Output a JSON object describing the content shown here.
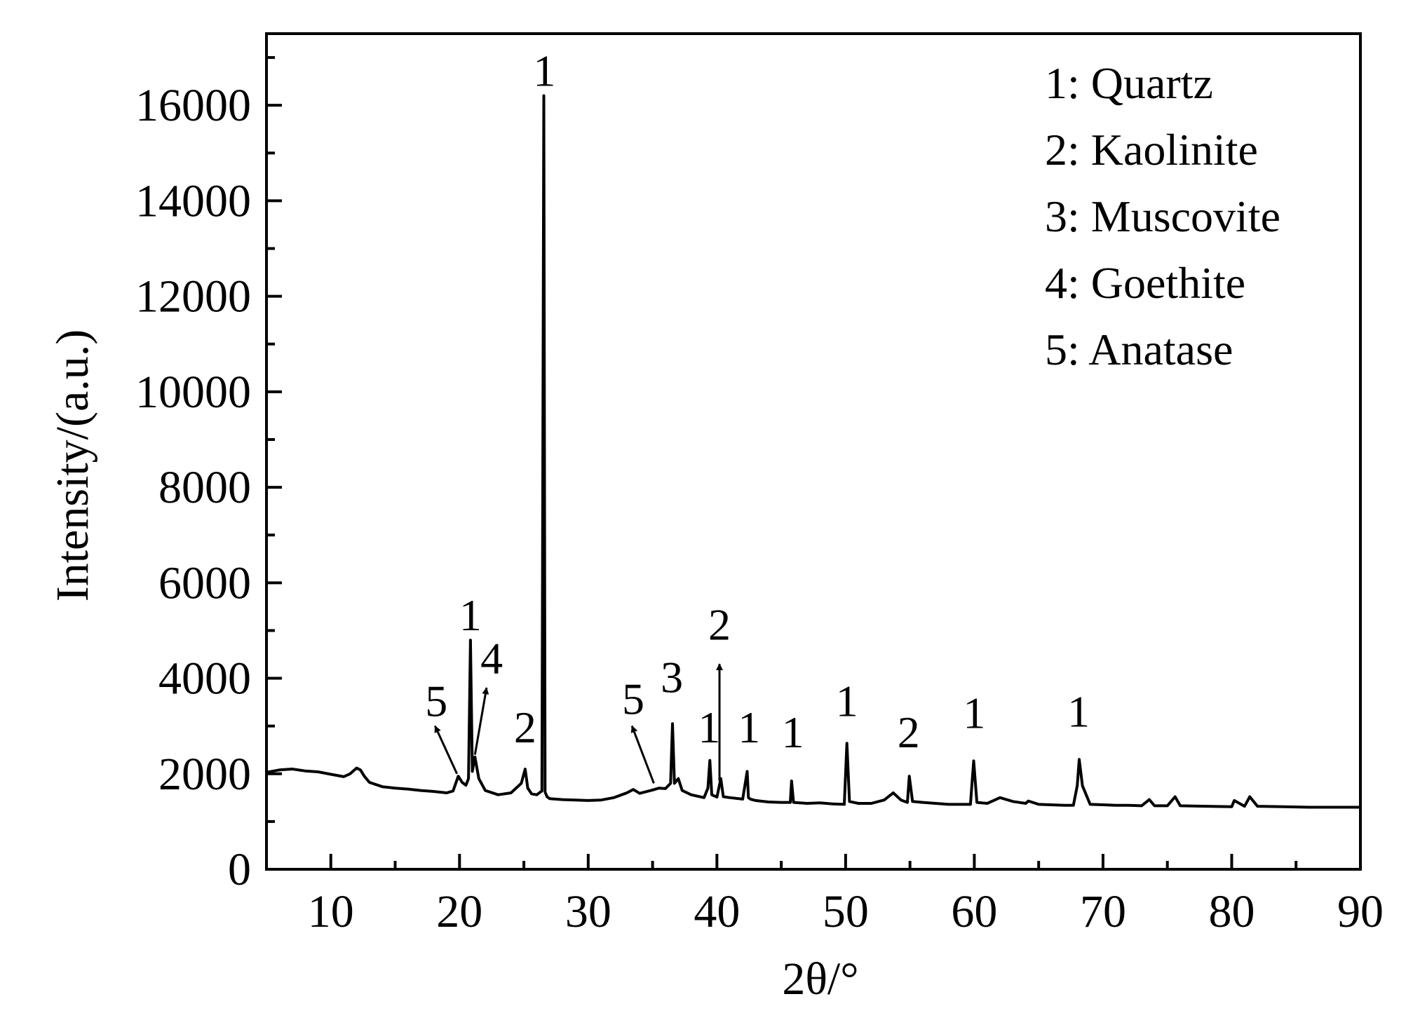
{
  "chart_data": {
    "type": "line",
    "title": "",
    "xlabel": "2θ/°",
    "ylabel": "Intensity/(a.u.)",
    "xlim": [
      5,
      90
    ],
    "ylim": [
      0,
      17500
    ],
    "x_ticks": [
      10,
      20,
      30,
      40,
      50,
      60,
      70,
      80,
      90
    ],
    "x_tick_labels": [
      "10",
      "20",
      "30",
      "40",
      "50",
      "60",
      "70",
      "80",
      "90"
    ],
    "y_ticks": [
      0,
      2000,
      4000,
      6000,
      8000,
      10000,
      12000,
      14000,
      16000
    ],
    "y_tick_labels": [
      "0",
      "2000",
      "4000",
      "6000",
      "8000",
      "10000",
      "12000",
      "14000",
      "16000"
    ],
    "grid": false,
    "legend_position": "top-right",
    "legend": [
      "1: Quartz",
      "2: Kaolinite",
      "3: Muscovite",
      "4: Goethite",
      "5: Anatase"
    ],
    "series": [
      {
        "x": [
          5,
          6,
          7,
          8,
          9,
          10,
          11,
          11.5,
          12,
          12.3,
          12.6,
          13,
          14,
          15,
          16,
          17,
          18,
          19,
          19.5,
          19.9,
          20.2,
          20.5,
          20.7,
          20.85,
          21.0,
          21.2,
          21.5,
          22,
          23,
          24,
          24.8,
          25.1,
          25.3,
          25.6,
          26,
          26.4,
          26.55,
          26.65,
          26.8,
          27,
          28,
          29,
          30,
          31,
          32,
          33,
          33.5,
          34,
          35,
          35.5,
          36,
          36.4,
          36.55,
          36.7,
          37.0,
          37.3,
          38,
          39,
          39.3,
          39.45,
          39.6,
          40.0,
          40.3,
          40.5,
          41,
          42,
          42.35,
          42.45,
          42.6,
          43,
          44,
          45,
          45.7,
          45.8,
          45.95,
          47,
          48,
          49,
          49.9,
          50.1,
          50.3,
          51,
          52,
          53,
          53.7,
          54.3,
          54.8,
          54.95,
          55.2,
          56,
          58,
          59.7,
          59.95,
          60.2,
          61,
          62,
          63,
          64,
          64.2,
          65,
          67,
          67.7,
          68.0,
          68.15,
          68.4,
          69,
          70,
          71,
          72,
          73,
          73.6,
          74,
          75,
          75.6,
          76,
          78,
          80,
          80.2,
          81,
          81.4,
          82,
          84,
          86,
          88,
          90
        ],
        "y": [
          2030,
          2080,
          2100,
          2060,
          2040,
          1990,
          1940,
          2000,
          2120,
          2080,
          1950,
          1820,
          1730,
          1700,
          1680,
          1650,
          1630,
          1600,
          1640,
          1950,
          1820,
          1760,
          1900,
          4800,
          2050,
          2350,
          1900,
          1650,
          1560,
          1600,
          1800,
          2100,
          1700,
          1580,
          1560,
          1640,
          16200,
          1620,
          1520,
          1480,
          1460,
          1450,
          1440,
          1450,
          1500,
          1600,
          1670,
          1590,
          1660,
          1700,
          1690,
          1800,
          3050,
          1800,
          1900,
          1650,
          1560,
          1500,
          1700,
          2280,
          1560,
          1510,
          1900,
          1520,
          1500,
          1470,
          2050,
          1500,
          1470,
          1440,
          1410,
          1400,
          1400,
          1850,
          1400,
          1380,
          1390,
          1370,
          1360,
          2640,
          1420,
          1380,
          1380,
          1450,
          1600,
          1450,
          1400,
          1950,
          1420,
          1400,
          1360,
          1360,
          2270,
          1400,
          1380,
          1500,
          1420,
          1380,
          1430,
          1360,
          1340,
          1340,
          1750,
          2300,
          1750,
          1360,
          1350,
          1340,
          1340,
          1330,
          1460,
          1330,
          1330,
          1520,
          1330,
          1320,
          1310,
          1440,
          1320,
          1520,
          1320,
          1310,
          1300,
          1300,
          1300
        ]
      }
    ],
    "peak_labels": [
      {
        "text": "1",
        "x": 26.6,
        "y": 16200
      },
      {
        "text": "1",
        "x": 20.85,
        "y": 4800
      },
      {
        "text": "4",
        "x": 22.5,
        "y": 3900
      },
      {
        "text": "5",
        "x": 18.2,
        "y": 3000
      },
      {
        "text": "2",
        "x": 25.1,
        "y": 2450
      },
      {
        "text": "5",
        "x": 33.5,
        "y": 3050
      },
      {
        "text": "3",
        "x": 36.5,
        "y": 3500
      },
      {
        "text": "2",
        "x": 40.2,
        "y": 4600
      },
      {
        "text": "1",
        "x": 39.4,
        "y": 2450
      },
      {
        "text": "1",
        "x": 42.5,
        "y": 2450
      },
      {
        "text": "1",
        "x": 45.9,
        "y": 2350
      },
      {
        "text": "1",
        "x": 50.1,
        "y": 3000
      },
      {
        "text": "2",
        "x": 54.9,
        "y": 2350
      },
      {
        "text": "1",
        "x": 60.0,
        "y": 2750
      },
      {
        "text": "1",
        "x": 68.1,
        "y": 2780
      }
    ],
    "arrows": [
      {
        "from": [
          19.8,
          2000
        ],
        "to": [
          18.1,
          3000
        ],
        "for": "5"
      },
      {
        "from": [
          21.2,
          2400
        ],
        "to": [
          22.1,
          3800
        ],
        "for": "4"
      },
      {
        "from": [
          35.1,
          1800
        ],
        "to": [
          33.4,
          3000
        ],
        "for": "5"
      },
      {
        "from": [
          40.2,
          1850
        ],
        "to": [
          40.2,
          4300
        ],
        "for": "2"
      }
    ]
  }
}
